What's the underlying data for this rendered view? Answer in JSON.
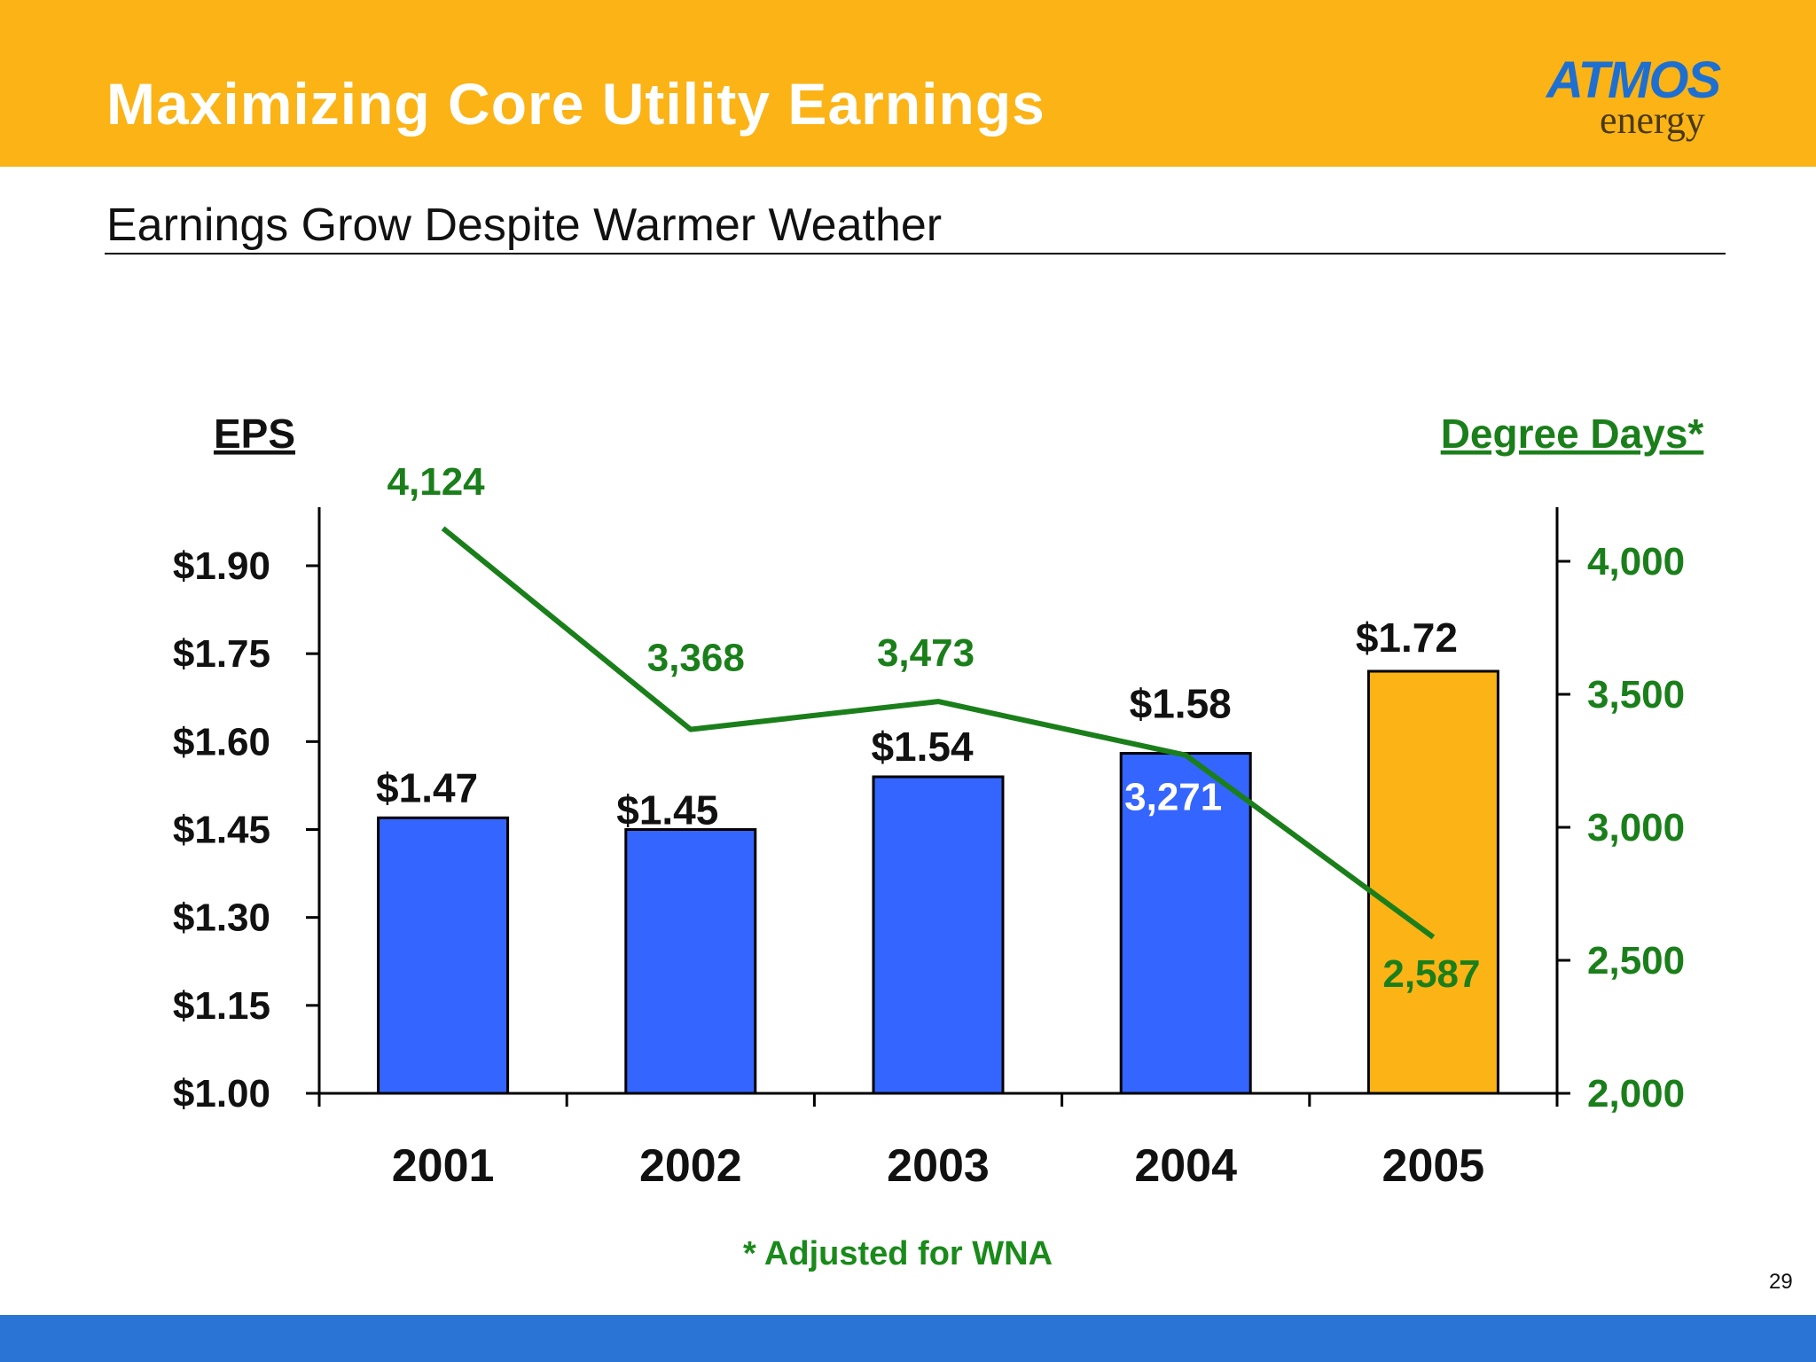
{
  "header": {
    "title": "Maximizing Core Utility Earnings"
  },
  "logo": {
    "brand": "ATMOS",
    "sub": "energy",
    "brand_color": "#1d6fd1"
  },
  "subtitle": "Earnings Grow Despite Warmer Weather",
  "footnote": "* Adjusted for WNA",
  "page_number": "29",
  "colors": {
    "header": "#fbb316",
    "bar": "#3565ff",
    "bar_highlight": "#fbb316",
    "line": "#1a7f1a",
    "footer": "#2a74d6"
  },
  "chart_data": {
    "type": "bar",
    "categories": [
      "2001",
      "2002",
      "2003",
      "2004",
      "2005"
    ],
    "series": [
      {
        "name": "EPS",
        "type": "bar",
        "axis": "left",
        "values": [
          1.47,
          1.45,
          1.54,
          1.58,
          1.72
        ],
        "labels": [
          "$1.47",
          "$1.45",
          "$1.54",
          "$1.58",
          "$1.72"
        ],
        "highlight_index": 4
      },
      {
        "name": "Degree Days*",
        "type": "line",
        "axis": "right",
        "values": [
          4124,
          3368,
          3473,
          3271,
          2587
        ],
        "labels": [
          "4,124",
          "3,368",
          "3,473",
          "3,271",
          "2,587"
        ]
      }
    ],
    "left_axis": {
      "title": "EPS",
      "range": [
        1.0,
        2.0
      ],
      "ticks": [
        1.0,
        1.15,
        1.3,
        1.45,
        1.6,
        1.75,
        1.9
      ],
      "tick_labels": [
        "$1.00",
        "$1.15",
        "$1.30",
        "$1.45",
        "$1.60",
        "$1.75",
        "$1.90"
      ]
    },
    "right_axis": {
      "title": "Degree Days*",
      "range": [
        2000,
        4200
      ],
      "ticks": [
        2000,
        2500,
        3000,
        3500,
        4000
      ],
      "tick_labels": [
        "2,000",
        "2,500",
        "3,000",
        "3,500",
        "4,000"
      ]
    },
    "grid": false,
    "legend": "none"
  }
}
